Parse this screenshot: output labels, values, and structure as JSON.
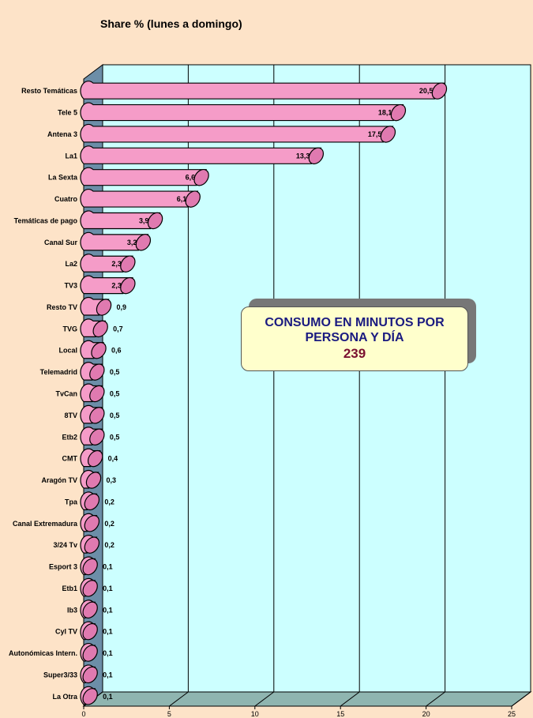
{
  "chart_data": {
    "type": "bar",
    "orientation": "horizontal",
    "title": "Share % (lunes a domingo)",
    "categories": [
      "Resto Temáticas",
      "Tele 5",
      "Antena 3",
      "La1",
      "La Sexta",
      "Cuatro",
      "Temáticas de pago",
      "Canal Sur",
      "La2",
      "TV3",
      "Resto TV",
      "TVG",
      "Local",
      "Telemadrid",
      "TvCan",
      "8TV",
      "Etb2",
      "CMT",
      "Aragón TV",
      "Tpa",
      "Canal Extremadura",
      "3/24 Tv",
      "Esport 3",
      "Etb1",
      "Ib3",
      "Cyl TV",
      "Autonómicas Intern.",
      "Super3/33",
      "La Otra"
    ],
    "values": [
      20.5,
      18.1,
      17.5,
      13.3,
      6.6,
      6.1,
      3.9,
      3.2,
      2.3,
      2.3,
      0.9,
      0.7,
      0.6,
      0.5,
      0.5,
      0.5,
      0.5,
      0.4,
      0.3,
      0.2,
      0.2,
      0.2,
      0.1,
      0.1,
      0.1,
      0.1,
      0.1,
      0.1,
      0.1
    ],
    "value_labels": [
      "20,5",
      "18,1",
      "17,5",
      "13,3",
      "6,6",
      "6,1",
      "3,9",
      "3,2",
      "2,3",
      "2,3",
      "0,9",
      "0,7",
      "0,6",
      "0,5",
      "0,5",
      "0,5",
      "0,5",
      "0,4",
      "0,3",
      "0,2",
      "0,2",
      "0,2",
      "0,1",
      "0,1",
      "0,1",
      "0,1",
      "0,1",
      "0,1",
      "0,1"
    ],
    "xlim": [
      0,
      25
    ],
    "xticks": [
      0,
      5,
      10,
      15,
      20,
      25
    ],
    "grid": true,
    "colors": {
      "bar": "#f59cc8",
      "bar_cap": "#e07ab0",
      "wall": "#ccffff",
      "side_wall": "#6c8ea8",
      "floor": "#8fb5b0"
    }
  },
  "info_box": {
    "line1": "CONSUMO EN MINUTOS POR",
    "line2": "PERSONA Y DÍA",
    "value": "239"
  }
}
